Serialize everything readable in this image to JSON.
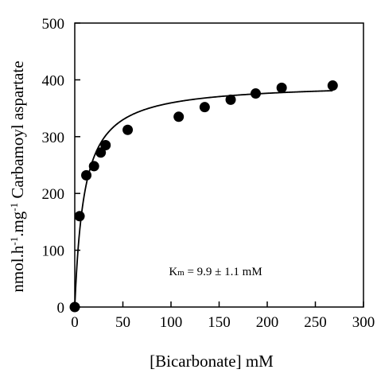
{
  "chart_data": {
    "type": "scatter",
    "title": "",
    "xlabel": "[Bicarbonate] mM",
    "ylabel_parts": [
      "nmol.h",
      "-1",
      ".mg",
      "-1",
      " Carbamoyl aspartate"
    ],
    "xlim": [
      0,
      300
    ],
    "ylim": [
      0,
      500
    ],
    "xticks": [
      "0",
      "50",
      "100",
      "150",
      "200",
      "250",
      "300"
    ],
    "yticks": [
      "0",
      "100",
      "200",
      "300",
      "400",
      "500"
    ],
    "grid": false,
    "points": [
      {
        "x": 0,
        "y": 0
      },
      {
        "x": 5,
        "y": 160
      },
      {
        "x": 12,
        "y": 232
      },
      {
        "x": 20,
        "y": 248
      },
      {
        "x": 27,
        "y": 272
      },
      {
        "x": 32,
        "y": 285
      },
      {
        "x": 55,
        "y": 312
      },
      {
        "x": 108,
        "y": 335
      },
      {
        "x": 135,
        "y": 352
      },
      {
        "x": 162,
        "y": 365
      },
      {
        "x": 188,
        "y": 376
      },
      {
        "x": 215,
        "y": 386
      },
      {
        "x": 268,
        "y": 390
      }
    ],
    "fit": {
      "model": "michaelis-menten",
      "vmax": 395,
      "km": 9.9,
      "x_end": 268
    },
    "annotation": {
      "main": "K",
      "sub": "m",
      "rest": " = 9.9 ± 1.1 mM"
    }
  }
}
